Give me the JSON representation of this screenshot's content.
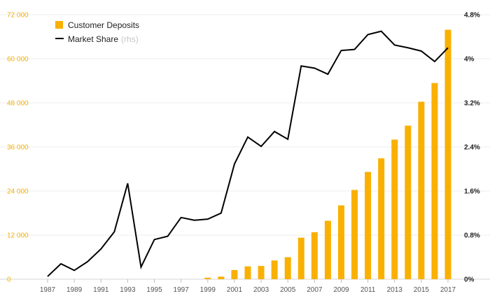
{
  "chart_data": {
    "type": "bar+line",
    "x": [
      1987,
      1988,
      1989,
      1990,
      1991,
      1992,
      1993,
      1994,
      1995,
      1996,
      1997,
      1998,
      1999,
      2000,
      2001,
      2002,
      2003,
      2004,
      2005,
      2006,
      2007,
      2008,
      2009,
      2010,
      2011,
      2012,
      2013,
      2014,
      2015,
      2016,
      2017
    ],
    "x_tick_labels": [
      "1987",
      "1989",
      "1991",
      "1993",
      "1995",
      "1997",
      "1999",
      "2001",
      "2003",
      "2005",
      "2007",
      "2009",
      "2011",
      "2013",
      "2015",
      "2017"
    ],
    "series": [
      {
        "name": "Customer Deposits",
        "type": "bar",
        "axis": "left",
        "color": "#f9b000",
        "values": [
          0,
          0,
          0,
          0,
          0,
          0,
          0,
          0,
          0,
          0,
          0,
          0,
          400,
          700,
          2500,
          3500,
          3600,
          5100,
          6000,
          11300,
          12800,
          15900,
          20100,
          24300,
          29200,
          32900,
          38000,
          41800,
          48300,
          53400,
          67900
        ]
      },
      {
        "name": "Market Share",
        "name_suffix": "(rhs)",
        "type": "line",
        "axis": "right",
        "color": "#000000",
        "values": [
          0.05,
          0.28,
          0.16,
          0.32,
          0.55,
          0.86,
          1.74,
          0.22,
          0.72,
          0.78,
          1.12,
          1.07,
          1.09,
          1.2,
          2.09,
          2.58,
          2.41,
          2.68,
          2.54,
          3.87,
          3.83,
          3.72,
          4.15,
          4.17,
          4.44,
          4.5,
          4.25,
          4.2,
          4.14,
          3.95,
          4.2
        ]
      }
    ],
    "left_axis": {
      "ylim": [
        0,
        72000
      ],
      "tick_values": [
        0,
        12000,
        24000,
        36000,
        48000,
        60000,
        72000
      ],
      "tick_labels": [
        "0",
        "12 000",
        "24 000",
        "36 000",
        "48 000",
        "60 000",
        "72 000"
      ],
      "color": "#f2b100"
    },
    "right_axis": {
      "ylim": [
        0,
        4.8
      ],
      "tick_values": [
        0,
        0.8,
        1.6,
        2.4,
        3.2,
        4,
        4.8
      ],
      "tick_labels": [
        "0%",
        "0.8%",
        "1.6%",
        "2.4%",
        "3.2%",
        "4%",
        "4.8%"
      ]
    },
    "grid": true,
    "legend_position": "top-left",
    "title": "",
    "xlabel": "",
    "ylabel": ""
  }
}
